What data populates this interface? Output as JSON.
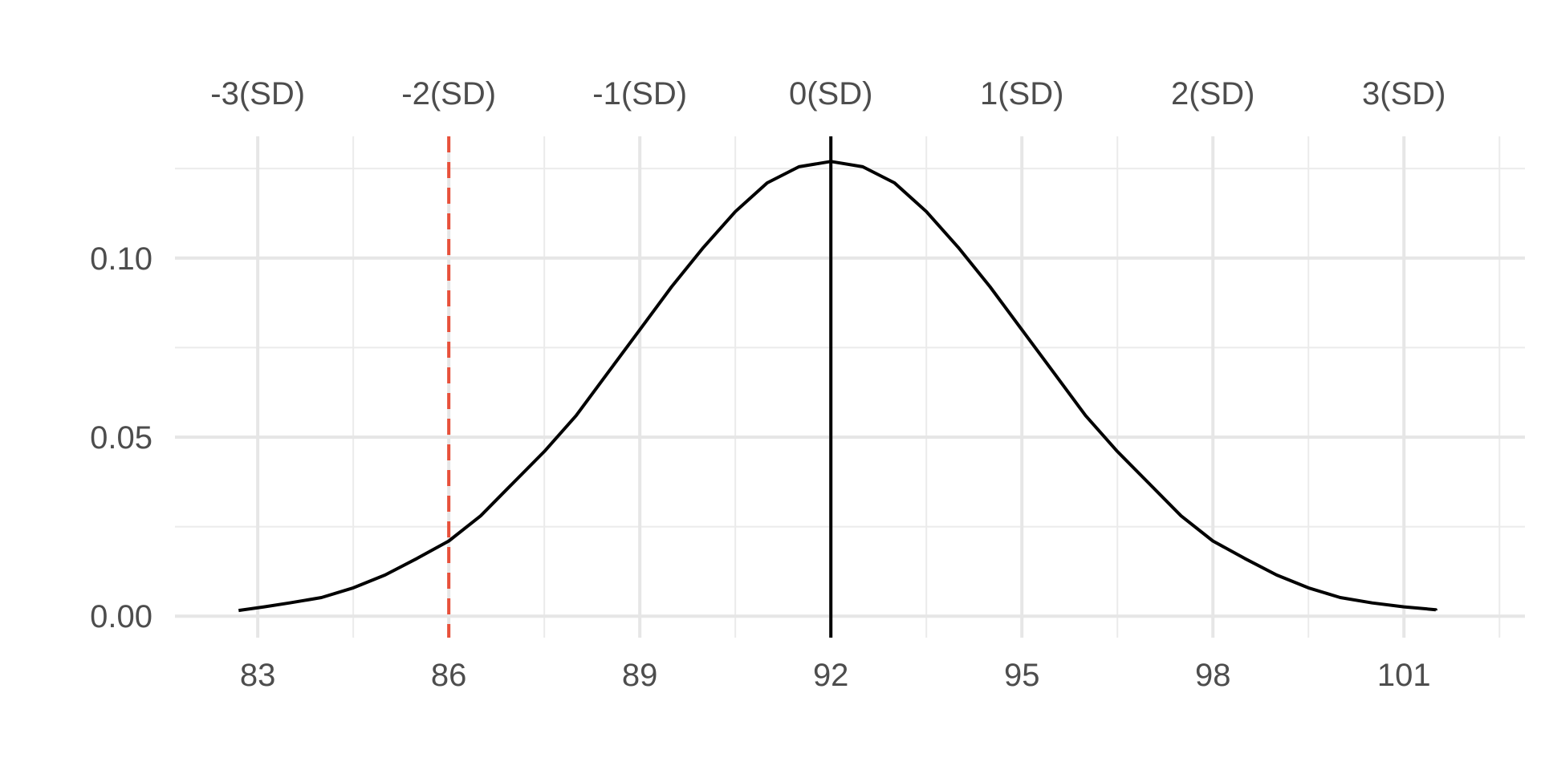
{
  "chart_data": {
    "type": "line",
    "title": "",
    "xlabel": "",
    "ylabel": "",
    "xlim": [
      81.7,
      102.9
    ],
    "ylim": [
      -0.006,
      0.134
    ],
    "x_ticks": [
      83,
      86,
      89,
      92,
      95,
      98,
      101
    ],
    "x_tick_labels": [
      "83",
      "86",
      "89",
      "92",
      "95",
      "98",
      "101"
    ],
    "x_minor_ticks": [
      84.5,
      87.5,
      90.5,
      93.5,
      96.5,
      99.5,
      102.5
    ],
    "y_ticks": [
      0.0,
      0.05,
      0.1
    ],
    "y_tick_labels": [
      "0.00",
      "0.05",
      "0.10"
    ],
    "y_minor_ticks": [
      0.025,
      0.075,
      0.125
    ],
    "top_ticks": [
      83,
      86,
      89,
      92,
      95,
      98,
      101
    ],
    "top_tick_labels": [
      "-3(SD)",
      "-2(SD)",
      "-1(SD)",
      "0(SD)",
      "1(SD)",
      "2(SD)",
      "3(SD)"
    ],
    "grid": true,
    "series": [
      {
        "color": "#000000",
        "x": [
          82.7,
          83.1,
          83.5,
          84,
          84.5,
          85,
          85.5,
          86,
          86.5,
          87,
          87.5,
          88,
          88.5,
          89,
          89.5,
          90,
          90.5,
          91,
          91.5,
          92,
          92.5,
          93,
          93.5,
          94,
          94.5,
          95,
          95.5,
          96,
          96.5,
          97,
          97.5,
          98,
          98.5,
          99,
          99.5,
          100,
          100.5,
          101,
          101.5,
          101.5
        ],
        "y": [
          0.0016,
          0.0026,
          0.0037,
          0.0052,
          0.0079,
          0.0115,
          0.0161,
          0.021,
          0.028,
          0.037,
          0.046,
          0.056,
          0.068,
          0.08,
          0.092,
          0.103,
          0.113,
          0.121,
          0.1255,
          0.127,
          0.1255,
          0.121,
          0.113,
          0.103,
          0.092,
          0.08,
          0.068,
          0.056,
          0.046,
          0.037,
          0.028,
          0.021,
          0.0161,
          0.0115,
          0.0079,
          0.0052,
          0.0037,
          0.0026,
          0.0018,
          0.0016
        ]
      }
    ],
    "reference_lines": [
      {
        "x": 92,
        "color": "#000000",
        "style": "solid"
      },
      {
        "x": 86,
        "color": "#e8503a",
        "style": "dashed"
      }
    ]
  }
}
